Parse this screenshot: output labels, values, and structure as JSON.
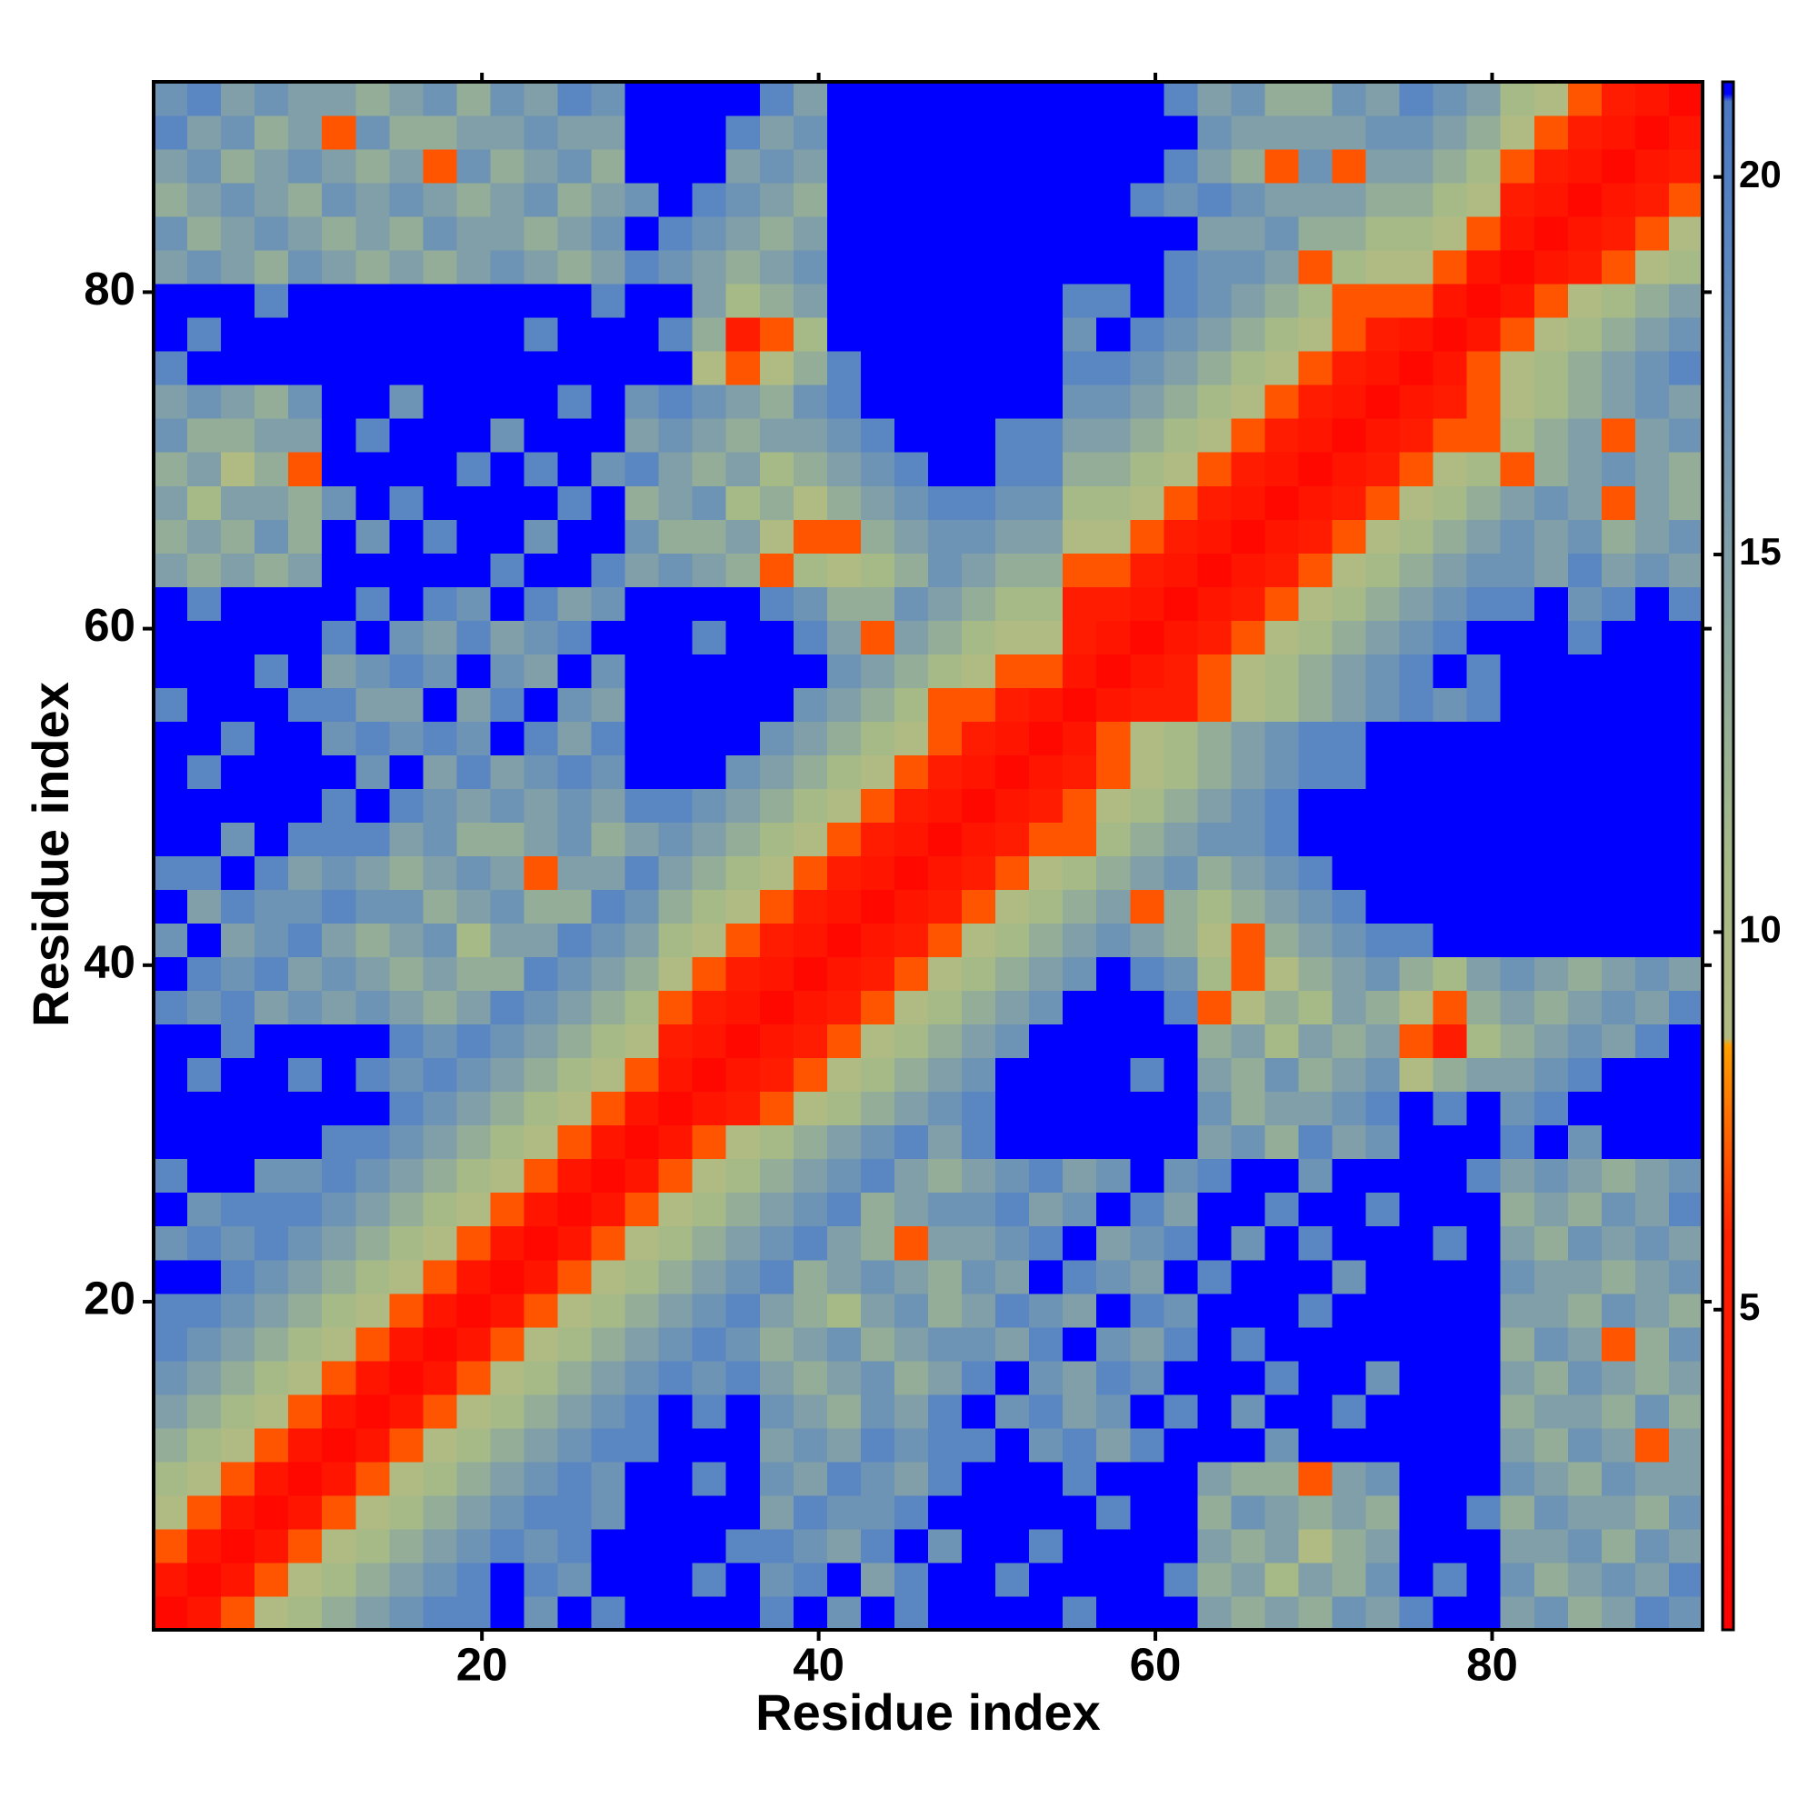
{
  "chart_data": {
    "type": "heatmap",
    "xlabel": "Residue index",
    "ylabel": "Residue index",
    "xlim": [
      0.5,
      92.5
    ],
    "ylim": [
      0.5,
      92.5
    ],
    "xticks": [
      20,
      40,
      60,
      80
    ],
    "yticks": [
      20,
      40,
      60,
      80
    ],
    "zlim": [
      0.76,
      21.26
    ],
    "zticks": [
      5,
      10,
      15,
      20
    ],
    "colorscale": [
      [
        0.76,
        "#ff0000"
      ],
      [
        6,
        "#ff2200"
      ],
      [
        8.5,
        "#ff9f00"
      ],
      [
        8.6,
        "#b2ba82"
      ],
      [
        11,
        "#a6ba88"
      ],
      [
        15,
        "#809fa8"
      ],
      [
        19,
        "#5a86c2"
      ],
      [
        21,
        "#4a78c4"
      ],
      [
        21.1,
        "#0000ff"
      ]
    ],
    "symmetric": true,
    "values": [
      [
        2,
        4,
        7,
        9,
        11,
        13,
        15,
        17,
        19,
        19,
        22,
        17,
        22,
        19,
        22,
        22,
        22,
        22,
        19,
        22,
        17,
        22,
        19,
        22,
        22,
        22,
        22,
        19,
        22,
        22,
        22,
        15,
        13,
        15,
        13,
        17,
        15,
        19,
        22,
        22,
        15,
        17,
        13,
        15,
        19,
        17
      ],
      [
        2,
        4,
        7,
        9,
        11,
        13,
        15,
        17,
        19,
        22,
        19,
        17,
        22,
        22,
        22,
        19,
        22,
        17,
        19,
        22,
        15,
        19,
        22,
        22,
        19,
        22,
        22,
        22,
        22,
        19,
        13,
        15,
        11,
        15,
        13,
        17,
        22,
        19,
        22,
        17,
        13,
        15,
        17,
        15,
        19
      ],
      [
        2,
        4,
        7,
        9,
        11,
        13,
        15,
        17,
        19,
        17,
        19,
        22,
        22,
        22,
        22,
        19,
        19,
        17,
        15,
        19,
        22,
        17,
        22,
        22,
        19,
        22,
        22,
        22,
        22,
        15,
        13,
        15,
        9,
        13,
        15,
        22,
        22,
        22,
        15,
        15,
        17,
        13,
        17,
        15
      ],
      [
        2,
        4,
        7,
        9,
        11,
        13,
        15,
        17,
        19,
        19,
        17,
        22,
        22,
        22,
        22,
        15,
        19,
        17,
        17,
        19,
        22,
        22,
        22,
        22,
        22,
        19,
        22,
        22,
        13,
        17,
        15,
        13,
        15,
        13,
        22,
        22,
        19,
        13,
        17,
        15,
        15,
        13,
        17
      ],
      [
        2,
        4,
        7,
        9,
        11,
        13,
        15,
        17,
        19,
        17,
        22,
        22,
        19,
        22,
        17,
        15,
        19,
        17,
        15,
        19,
        22,
        22,
        22,
        19,
        22,
        22,
        22,
        15,
        13,
        13,
        7,
        15,
        17,
        22,
        22,
        22,
        17,
        15,
        13,
        17,
        15,
        15
      ],
      [
        2,
        4,
        7,
        9,
        11,
        13,
        15,
        17,
        19,
        19,
        22,
        22,
        22,
        15,
        17,
        15,
        19,
        17,
        19,
        19,
        22,
        17,
        19,
        15,
        19,
        22,
        22,
        22,
        17,
        22,
        22,
        22,
        22,
        22,
        22,
        15,
        13,
        17,
        15,
        7,
        15
      ],
      [
        2,
        4,
        7,
        9,
        11,
        13,
        15,
        17,
        19,
        22,
        19,
        22,
        17,
        15,
        13,
        17,
        15,
        19,
        22,
        17,
        19,
        15,
        17,
        22,
        19,
        22,
        17,
        22,
        22,
        19,
        22,
        22,
        22,
        22,
        13,
        15,
        15,
        13,
        17,
        13
      ],
      [
        2,
        4,
        7,
        9,
        11,
        13,
        15,
        17,
        19,
        17,
        19,
        15,
        13,
        15,
        17,
        13,
        15,
        19,
        22,
        17,
        15,
        19,
        17,
        22,
        22,
        22,
        19,
        22,
        22,
        17,
        22,
        22,
        22,
        15,
        13,
        17,
        15,
        13,
        15
      ],
      [
        2,
        4,
        7,
        9,
        11,
        13,
        15,
        17,
        19,
        17,
        13,
        15,
        17,
        13,
        15,
        17,
        17,
        15,
        19,
        22,
        17,
        15,
        19,
        22,
        19,
        22,
        22,
        22,
        22,
        22,
        22,
        22,
        13,
        17,
        15,
        7,
        13,
        17
      ],
      [
        2,
        4,
        7,
        9,
        11,
        13,
        15,
        17,
        19,
        15,
        13,
        11,
        15,
        17,
        13,
        15,
        19,
        17,
        15,
        22,
        19,
        17,
        22,
        22,
        22,
        19,
        22,
        22,
        22,
        22,
        22,
        15,
        15,
        13,
        17,
        15,
        13
      ],
      [
        2,
        4,
        7,
        9,
        11,
        13,
        15,
        17,
        19,
        13,
        15,
        17,
        15,
        13,
        17,
        15,
        22,
        19,
        17,
        15,
        22,
        19,
        22,
        22,
        22,
        17,
        22,
        22,
        22,
        22,
        17,
        15,
        15,
        13,
        15,
        17
      ],
      [
        2,
        4,
        7,
        9,
        11,
        13,
        15,
        17,
        19,
        15,
        13,
        7,
        15,
        15,
        17,
        19,
        22,
        15,
        17,
        19,
        22,
        17,
        22,
        19,
        22,
        22,
        22,
        19,
        22,
        15,
        13,
        17,
        15,
        17,
        15
      ],
      [
        2,
        4,
        7,
        9,
        11,
        13,
        15,
        17,
        19,
        13,
        15,
        17,
        17,
        19,
        15,
        17,
        22,
        19,
        15,
        22,
        22,
        19,
        22,
        22,
        19,
        22,
        22,
        22,
        13,
        15,
        13,
        17,
        15,
        19
      ],
      [
        2,
        4,
        7,
        9,
        11,
        13,
        15,
        17,
        19,
        15,
        13,
        15,
        17,
        19,
        15,
        17,
        22,
        17,
        19,
        22,
        22,
        17,
        22,
        22,
        22,
        22,
        19,
        15,
        17,
        15,
        13,
        15,
        17
      ],
      [
        2,
        4,
        7,
        9,
        11,
        13,
        15,
        17,
        19,
        15,
        19,
        22,
        22,
        22,
        22,
        22,
        22,
        15,
        17,
        13,
        19,
        15,
        17,
        22,
        22,
        22,
        19,
        22,
        17,
        22,
        22,
        22
      ],
      [
        2,
        4,
        5,
        7,
        9,
        11,
        13,
        15,
        17,
        19,
        22,
        22,
        22,
        22,
        22,
        22,
        17,
        13,
        15,
        15,
        17,
        19,
        22,
        19,
        22,
        17,
        19,
        22,
        22,
        22,
        22
      ],
      [
        2,
        4,
        5,
        7,
        9,
        11,
        13,
        15,
        17,
        22,
        22,
        22,
        22,
        19,
        22,
        15,
        13,
        17,
        13,
        15,
        17,
        9,
        13,
        15,
        15,
        17,
        19,
        22,
        22,
        22
      ],
      [
        2,
        4,
        5,
        7,
        9,
        11,
        13,
        15,
        17,
        22,
        22,
        22,
        22,
        22,
        13,
        15,
        11,
        15,
        13,
        15,
        7,
        5,
        11,
        13,
        15,
        17,
        15,
        19,
        22
      ],
      [
        2,
        4,
        5,
        7,
        9,
        11,
        13,
        15,
        17,
        22,
        22,
        22,
        19,
        7,
        9,
        13,
        11,
        15,
        13,
        9,
        7,
        13,
        15,
        13,
        15,
        17,
        15,
        19
      ],
      [
        2,
        4,
        5,
        7,
        9,
        11,
        13,
        15,
        17,
        22,
        19,
        17,
        11,
        7,
        9,
        13,
        15,
        17,
        13,
        11,
        15,
        17,
        15,
        13,
        15,
        17,
        15
      ],
      [
        2,
        4,
        5,
        7,
        9,
        11,
        13,
        15,
        17,
        15,
        13,
        9,
        7,
        13,
        15,
        17,
        19,
        19,
        22,
        22,
        22,
        22,
        22,
        22,
        22,
        22
      ],
      [
        2,
        4,
        5,
        7,
        9,
        11,
        13,
        15,
        7,
        13,
        11,
        13,
        15,
        17,
        19,
        22,
        22,
        22,
        22,
        22,
        22,
        22,
        22,
        22,
        22
      ],
      [
        2,
        4,
        5,
        7,
        9,
        11,
        13,
        15,
        17,
        13,
        15,
        17,
        19,
        22,
        22,
        22,
        22,
        22,
        22,
        22,
        22,
        22,
        22,
        22
      ],
      [
        2,
        4,
        5,
        7,
        7,
        11,
        13,
        15,
        17,
        17,
        19,
        22,
        22,
        22,
        22,
        22,
        22,
        22,
        22,
        22,
        22,
        22,
        22
      ],
      [
        2,
        4,
        5,
        7,
        9,
        11,
        13,
        15,
        17,
        19,
        22,
        22,
        22,
        22,
        22,
        22,
        22,
        22,
        22,
        22,
        22,
        22
      ],
      [
        2,
        4,
        5,
        7,
        9,
        11,
        13,
        15,
        17,
        19,
        19,
        22,
        22,
        22,
        22,
        22,
        22,
        22,
        22,
        22,
        22
      ],
      [
        2,
        4,
        7,
        9,
        11,
        13,
        15,
        17,
        19,
        19,
        22,
        22,
        22,
        22,
        22,
        22,
        22,
        22,
        22,
        22
      ],
      [
        2,
        4,
        5,
        5,
        7,
        9,
        11,
        13,
        15,
        17,
        19,
        17,
        19,
        22,
        22,
        22,
        22,
        22,
        22
      ],
      [
        2,
        4,
        5,
        7,
        9,
        11,
        13,
        15,
        17,
        19,
        22,
        19,
        22,
        22,
        22,
        22,
        22,
        22
      ],
      [
        2,
        4,
        5,
        7,
        9,
        11,
        13,
        15,
        17,
        19,
        22,
        22,
        22,
        19,
        22,
        22,
        22
      ],
      [
        2,
        4,
        5,
        7,
        9,
        11,
        13,
        15,
        17,
        19,
        19,
        22,
        17,
        19,
        22,
        19
      ],
      [
        2,
        4,
        5,
        7,
        9,
        11,
        13,
        15,
        17,
        17,
        15,
        19,
        15,
        17,
        15
      ],
      [
        2,
        4,
        5,
        7,
        9,
        11,
        13,
        15,
        17,
        15,
        17,
        13,
        15,
        17
      ],
      [
        2,
        4,
        5,
        7,
        9,
        11,
        13,
        15,
        17,
        15,
        7,
        15,
        13
      ],
      [
        2,
        4,
        5,
        7,
        9,
        11,
        7,
        13,
        15,
        17,
        15,
        13
      ],
      [
        2,
        4,
        5,
        7,
        7,
        11,
        13,
        15,
        7,
        15,
        17
      ],
      [
        2,
        4,
        5,
        7,
        9,
        11,
        13,
        15,
        17,
        15
      ],
      [
        2,
        4,
        7,
        9,
        11,
        13,
        15,
        17,
        19
      ],
      [
        2,
        4,
        7,
        9,
        11,
        13,
        15,
        17
      ],
      [
        2,
        4,
        7,
        9,
        11,
        13,
        15
      ],
      [
        2,
        4,
        5,
        7,
        9,
        11
      ],
      [
        2,
        4,
        5,
        7,
        9
      ],
      [
        2,
        4,
        5,
        7
      ],
      [
        2,
        4,
        5
      ],
      [
        2,
        4
      ],
      [
        2
      ]
    ]
  }
}
